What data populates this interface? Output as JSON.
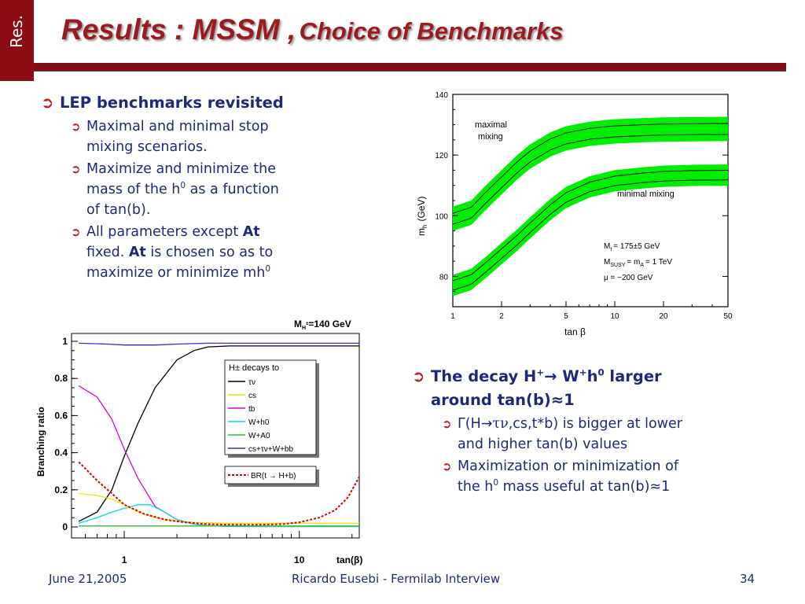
{
  "side_tab": "Res.",
  "title": {
    "part1": "Results : MSSM ,",
    "part2": "Choice of Benchmarks"
  },
  "left_bullets": {
    "main": "LEP benchmarks revisited",
    "sub1": [
      "Maximal and minimal stop",
      "mixing scenarios."
    ],
    "sub2": {
      "pre": "Maximize and minimize the",
      "mid": "mass of the h",
      "sup": "0",
      "post": " as a function",
      "last": "of tan(b)."
    },
    "sub3": {
      "l1_pre": "All parameters except ",
      "l1_bold": "At",
      "l2_pre": "fixed. ",
      "l2_bold": "At",
      "l2_post": " is chosen so as to",
      "l3": "maximize or minimize mh",
      "l3_sup": "0"
    }
  },
  "right_bullets": {
    "main": {
      "pre": "The decay H",
      "sup1": "+",
      "arrow": "→",
      "mid": " W",
      "sup2": "+",
      "h": "h",
      "sup3": "0",
      "post": " larger",
      "line2": "around tan(b)≈1"
    },
    "sub1": {
      "pre": "Γ(H→",
      "tau": "τν",
      "post": ",cs,t*b)  is bigger at lower",
      "line2": "and higher tan(b) values"
    },
    "sub2": {
      "l1": "Maximization or minimization of",
      "l2_pre": "the h",
      "l2_sup": "0",
      "l2_post": " mass useful at tan(b)≈1"
    }
  },
  "mass_plot": {
    "yticks": [
      "140",
      "120",
      "100",
      "80"
    ],
    "xticks": [
      "1",
      "2",
      "5",
      "10",
      "20",
      "50"
    ],
    "ylabel": "m",
    "ylabel_sub": "h",
    "ylabel_unit": "(GeV)",
    "xlabel": "tan β",
    "label_max": [
      "maximal",
      "mixing"
    ],
    "label_min": "minimal mixing",
    "params": [
      "M",
      "= 175±5 GeV",
      "M",
      "= m",
      "= 1 TeV",
      "μ  = −200 GeV"
    ],
    "param_subs": [
      "t",
      "SUSY",
      "A"
    ],
    "band_color": "#00ee00",
    "chart_data": {
      "type": "line",
      "xlabel": "tan β",
      "ylabel": "m_h (GeV)",
      "ylim": [
        70,
        140
      ],
      "xlim": [
        1,
        50
      ],
      "xscale": "log",
      "series": [
        {
          "name": "maximal mixing",
          "x": [
            1,
            1.3,
            1.6,
            2,
            2.5,
            3,
            4,
            5,
            7,
            10,
            15,
            20,
            30,
            50
          ],
          "values": [
            99,
            101,
            106,
            111,
            116,
            119.5,
            123.5,
            125.5,
            127,
            127.8,
            128.2,
            128.4,
            128.5,
            128.6
          ],
          "band": 4
        },
        {
          "name": "minimal mixing",
          "x": [
            1,
            1.3,
            1.6,
            2,
            2.5,
            3,
            4,
            5,
            7,
            10,
            15,
            20,
            30,
            50
          ],
          "values": [
            77,
            79,
            83,
            87.5,
            92,
            96,
            102,
            106,
            109.5,
            111.5,
            112.5,
            113,
            113.3,
            113.4
          ],
          "band": 3.5
        }
      ]
    }
  },
  "br_plot": {
    "header": {
      "pre": "M",
      "sub": "H",
      "subsup": "±",
      "post": "=140 GeV"
    },
    "ylabel": "Branching ratio",
    "xlabel": "tan(β)",
    "yticks": [
      "1",
      "0.8",
      "0.6",
      "0.4",
      "0.2",
      "0"
    ],
    "xticks": [
      "1",
      "10"
    ],
    "legend_title": "H± decays to",
    "legend": [
      {
        "label": "τν",
        "color": "#000000"
      },
      {
        "label": "cs",
        "color": "#e8e800"
      },
      {
        "label": "tb",
        "color": "#e000e0"
      },
      {
        "label": "W+h0",
        "color": "#00e0e0"
      },
      {
        "label": "W+A0",
        "color": "#33bb33"
      },
      {
        "label": "cs+τν+W+bb",
        "color": "#3333cc"
      }
    ],
    "legend2": {
      "label": "BR(t → H+b)",
      "color": "#dd0000"
    },
    "chart_data": {
      "type": "line",
      "xscale": "log",
      "xlim": [
        0.5,
        22
      ],
      "ylim": [
        0,
        1.1
      ],
      "ylabel": "Branching ratio",
      "xlabel": "tan(β)",
      "series": [
        {
          "name": "τν",
          "x": [
            0.55,
            0.7,
            0.85,
            1,
            1.2,
            1.5,
            2,
            2.5,
            3,
            4,
            6,
            10,
            22
          ],
          "values": [
            0.03,
            0.08,
            0.2,
            0.38,
            0.56,
            0.75,
            0.9,
            0.95,
            0.97,
            0.975,
            0.975,
            0.975,
            0.975
          ]
        },
        {
          "name": "cs",
          "x": [
            0.55,
            0.7,
            0.85,
            1,
            1.2,
            1.5,
            2,
            2.5,
            3,
            4,
            6,
            10,
            22
          ],
          "values": [
            0.18,
            0.17,
            0.15,
            0.12,
            0.08,
            0.05,
            0.03,
            0.025,
            0.022,
            0.02,
            0.02,
            0.02,
            0.02
          ]
        },
        {
          "name": "tb",
          "x": [
            0.55,
            0.7,
            0.85,
            1,
            1.2,
            1.5,
            2,
            2.5,
            3,
            4,
            6,
            10,
            22
          ],
          "values": [
            0.76,
            0.7,
            0.58,
            0.42,
            0.26,
            0.11,
            0.04,
            0.015,
            0.007,
            0.003,
            0.002,
            0.002,
            0.002
          ]
        },
        {
          "name": "W+h0",
          "x": [
            0.55,
            0.7,
            0.85,
            1,
            1.2,
            1.4,
            1.7,
            2,
            2.5,
            3,
            4,
            6,
            10,
            22
          ],
          "values": [
            0.02,
            0.05,
            0.08,
            0.1,
            0.12,
            0.12,
            0.08,
            0.04,
            0.015,
            0.007,
            0.003,
            0.002,
            0.002,
            0.002
          ]
        },
        {
          "name": "W+A0",
          "x": [
            0.55,
            1,
            2,
            5,
            10,
            22
          ],
          "values": [
            0.005,
            0.005,
            0.005,
            0.005,
            0.005,
            0.005
          ]
        },
        {
          "name": "cs+τν+W+bb",
          "x": [
            0.55,
            0.8,
            1,
            1.2,
            1.5,
            2,
            3,
            5,
            10,
            22
          ],
          "values": [
            0.99,
            0.985,
            0.98,
            0.98,
            0.98,
            0.985,
            0.99,
            0.99,
            0.99,
            0.99
          ]
        },
        {
          "name": "BR(t → H+b)",
          "x": [
            0.55,
            0.7,
            0.85,
            1,
            1.3,
            1.7,
            2.2,
            3,
            4,
            6,
            8,
            10,
            13,
            16,
            19,
            22
          ],
          "values": [
            0.35,
            0.25,
            0.18,
            0.12,
            0.07,
            0.04,
            0.025,
            0.015,
            0.012,
            0.012,
            0.015,
            0.025,
            0.05,
            0.09,
            0.16,
            0.27
          ],
          "dashed": true
        }
      ]
    }
  },
  "footer": {
    "date": "June 21,2005",
    "center": "Ricardo Eusebi - Fermilab Interview",
    "page": "34"
  }
}
